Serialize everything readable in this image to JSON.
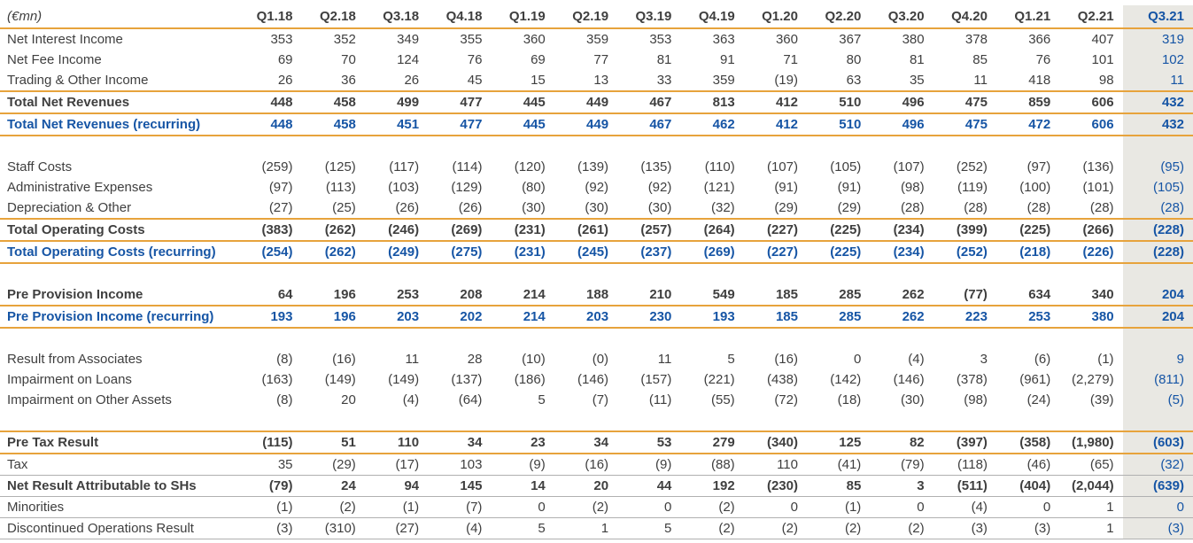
{
  "table": {
    "unit_label": "(€mn)",
    "columns": [
      "Q1.18",
      "Q2.18",
      "Q3.18",
      "Q4.18",
      "Q1.19",
      "Q2.19",
      "Q3.19",
      "Q4.19",
      "Q1.20",
      "Q2.20",
      "Q3.20",
      "Q4.20",
      "Q1.21",
      "Q2.21",
      "Q3.21"
    ],
    "highlighted_column": "Q3.21",
    "colors": {
      "text": "#3F3F3F",
      "accent_rule_gold": "#E7A33C",
      "gray_rule": "#B0B0B0",
      "recurring_blue": "#1655A5",
      "highlight_column_bg": "#E9E8E3"
    },
    "sections": [
      {
        "rows": [
          {
            "label": "Net Interest Income",
            "emphasis": "normal",
            "rule_top": "",
            "rule_bottom": "",
            "values": [
              "353",
              "352",
              "349",
              "355",
              "360",
              "359",
              "353",
              "363",
              "360",
              "367",
              "380",
              "378",
              "366",
              "407",
              "319"
            ]
          },
          {
            "label": "Net Fee Income",
            "emphasis": "normal",
            "rule_top": "",
            "rule_bottom": "",
            "values": [
              "69",
              "70",
              "124",
              "76",
              "69",
              "77",
              "81",
              "91",
              "71",
              "80",
              "81",
              "85",
              "76",
              "101",
              "102"
            ]
          },
          {
            "label": "Trading & Other Income",
            "emphasis": "normal",
            "rule_top": "",
            "rule_bottom": "",
            "values": [
              "26",
              "36",
              "26",
              "45",
              "15",
              "13",
              "33",
              "359",
              "(19)",
              "63",
              "35",
              "11",
              "418",
              "98",
              "11"
            ]
          },
          {
            "label": "Total Net Revenues",
            "emphasis": "bold",
            "rule_top": "gold",
            "rule_bottom": "gold",
            "values": [
              "448",
              "458",
              "499",
              "477",
              "445",
              "449",
              "467",
              "813",
              "412",
              "510",
              "496",
              "475",
              "859",
              "606",
              "432"
            ]
          },
          {
            "label": "Total Net Revenues (recurring)",
            "emphasis": "recurring",
            "rule_top": "",
            "rule_bottom": "gold",
            "values": [
              "448",
              "458",
              "451",
              "477",
              "445",
              "449",
              "467",
              "462",
              "412",
              "510",
              "496",
              "475",
              "472",
              "606",
              "432"
            ]
          }
        ]
      },
      {
        "rows": [
          {
            "label": "Staff Costs",
            "emphasis": "normal",
            "rule_top": "",
            "rule_bottom": "",
            "values": [
              "(259)",
              "(125)",
              "(117)",
              "(114)",
              "(120)",
              "(139)",
              "(135)",
              "(110)",
              "(107)",
              "(105)",
              "(107)",
              "(252)",
              "(97)",
              "(136)",
              "(95)"
            ]
          },
          {
            "label": "Administrative Expenses",
            "emphasis": "normal",
            "rule_top": "",
            "rule_bottom": "",
            "values": [
              "(97)",
              "(113)",
              "(103)",
              "(129)",
              "(80)",
              "(92)",
              "(92)",
              "(121)",
              "(91)",
              "(91)",
              "(98)",
              "(119)",
              "(100)",
              "(101)",
              "(105)"
            ]
          },
          {
            "label": "Depreciation & Other",
            "emphasis": "normal",
            "rule_top": "",
            "rule_bottom": "",
            "values": [
              "(27)",
              "(25)",
              "(26)",
              "(26)",
              "(30)",
              "(30)",
              "(30)",
              "(32)",
              "(29)",
              "(29)",
              "(28)",
              "(28)",
              "(28)",
              "(28)",
              "(28)"
            ]
          },
          {
            "label": "Total Operating Costs",
            "emphasis": "bold",
            "rule_top": "gold",
            "rule_bottom": "gold",
            "values": [
              "(383)",
              "(262)",
              "(246)",
              "(269)",
              "(231)",
              "(261)",
              "(257)",
              "(264)",
              "(227)",
              "(225)",
              "(234)",
              "(399)",
              "(225)",
              "(266)",
              "(228)"
            ]
          },
          {
            "label": "Total Operating Costs (recurring)",
            "emphasis": "recurring",
            "rule_top": "",
            "rule_bottom": "gold",
            "values": [
              "(254)",
              "(262)",
              "(249)",
              "(275)",
              "(231)",
              "(245)",
              "(237)",
              "(269)",
              "(227)",
              "(225)",
              "(234)",
              "(252)",
              "(218)",
              "(226)",
              "(228)"
            ]
          }
        ]
      },
      {
        "rows": [
          {
            "label": "Pre Provision Income",
            "emphasis": "bold",
            "rule_top": "",
            "rule_bottom": "gold",
            "values": [
              "64",
              "196",
              "253",
              "208",
              "214",
              "188",
              "210",
              "549",
              "185",
              "285",
              "262",
              "(77)",
              "634",
              "340",
              "204"
            ]
          },
          {
            "label": "Pre Provision Income (recurring)",
            "emphasis": "recurring",
            "rule_top": "",
            "rule_bottom": "gold",
            "values": [
              "193",
              "196",
              "203",
              "202",
              "214",
              "203",
              "230",
              "193",
              "185",
              "285",
              "262",
              "223",
              "253",
              "380",
              "204"
            ]
          }
        ]
      },
      {
        "rows": [
          {
            "label": "Result from Associates",
            "emphasis": "normal",
            "rule_top": "",
            "rule_bottom": "",
            "values": [
              "(8)",
              "(16)",
              "11",
              "28",
              "(10)",
              "(0)",
              "11",
              "5",
              "(16)",
              "0",
              "(4)",
              "3",
              "(6)",
              "(1)",
              "9"
            ]
          },
          {
            "label": "Impairment on Loans",
            "emphasis": "normal",
            "rule_top": "",
            "rule_bottom": "",
            "values": [
              "(163)",
              "(149)",
              "(149)",
              "(137)",
              "(186)",
              "(146)",
              "(157)",
              "(221)",
              "(438)",
              "(142)",
              "(146)",
              "(378)",
              "(961)",
              "(2,279)",
              "(811)"
            ]
          },
          {
            "label": "Impairment on Other Assets",
            "emphasis": "normal",
            "rule_top": "",
            "rule_bottom": "",
            "values": [
              "(8)",
              "20",
              "(4)",
              "(64)",
              "5",
              "(7)",
              "(11)",
              "(55)",
              "(72)",
              "(18)",
              "(30)",
              "(98)",
              "(24)",
              "(39)",
              "(5)"
            ]
          }
        ]
      },
      {
        "rows": [
          {
            "label": "Pre Tax Result",
            "emphasis": "bold",
            "rule_top": "gold",
            "rule_bottom": "gold",
            "values": [
              "(115)",
              "51",
              "110",
              "34",
              "23",
              "34",
              "53",
              "279",
              "(340)",
              "125",
              "82",
              "(397)",
              "(358)",
              "(1,980)",
              "(603)"
            ]
          },
          {
            "label": "Tax",
            "emphasis": "normal",
            "rule_top": "",
            "rule_bottom": "gray",
            "values": [
              "35",
              "(29)",
              "(17)",
              "103",
              "(9)",
              "(16)",
              "(9)",
              "(88)",
              "110",
              "(41)",
              "(79)",
              "(118)",
              "(46)",
              "(65)",
              "(32)"
            ]
          },
          {
            "label": "Net Result Attributable to SHs",
            "emphasis": "bold",
            "rule_top": "",
            "rule_bottom": "gray",
            "values": [
              "(79)",
              "24",
              "94",
              "145",
              "14",
              "20",
              "44",
              "192",
              "(230)",
              "85",
              "3",
              "(511)",
              "(404)",
              "(2,044)",
              "(639)"
            ]
          },
          {
            "label": "Minorities",
            "emphasis": "normal",
            "rule_top": "",
            "rule_bottom": "gray",
            "values": [
              "(1)",
              "(2)",
              "(1)",
              "(7)",
              "0",
              "(2)",
              "0",
              "(2)",
              "0",
              "(1)",
              "0",
              "(4)",
              "0",
              "1",
              "0"
            ]
          },
          {
            "label": "Discontinued Operations Result",
            "emphasis": "normal",
            "rule_top": "",
            "rule_bottom": "gray",
            "values": [
              "(3)",
              "(310)",
              "(27)",
              "(4)",
              "5",
              "1",
              "5",
              "(2)",
              "(2)",
              "(2)",
              "(2)",
              "(3)",
              "(3)",
              "1",
              "(3)"
            ]
          }
        ]
      }
    ]
  }
}
